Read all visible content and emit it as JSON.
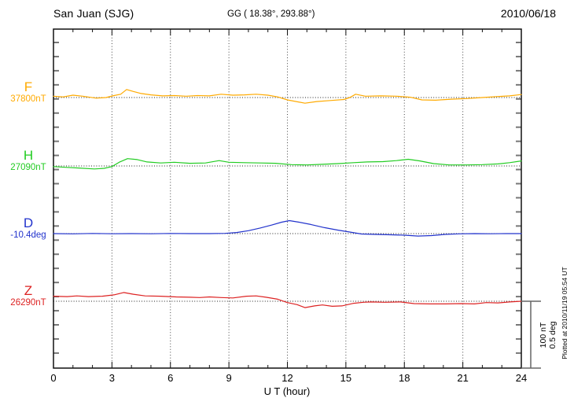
{
  "header": {
    "station": "San Juan (SJG)",
    "coordinates": "GG ( 18.38°, 293.88°)",
    "date": "2010/06/18"
  },
  "chart_data": {
    "type": "line",
    "title": "San Juan (SJG) magnetogram 2010/06/18",
    "xlabel": "U T (hour)",
    "x_range": [
      0,
      24
    ],
    "x_ticks": [
      0,
      3,
      6,
      9,
      12,
      15,
      18,
      21,
      24
    ],
    "x_minor_tick_step_hours": 1,
    "grid": "dotted vertical lines every 3 hours; dotted horizontal baseline per channel",
    "series": [
      {
        "id": "F",
        "label": "F",
        "base_label": "37800nT",
        "unit": "nT",
        "base_value": 37800,
        "color": "#FFAA00",
        "points": [
          [
            0,
            37802
          ],
          [
            0.5,
            37801
          ],
          [
            1,
            37803.5
          ],
          [
            1.5,
            37802
          ],
          [
            2.2,
            37799
          ],
          [
            2.7,
            37800
          ],
          [
            3.1,
            37803
          ],
          [
            3.45,
            37805
          ],
          [
            3.75,
            37812
          ],
          [
            4.1,
            37809
          ],
          [
            4.5,
            37806
          ],
          [
            5,
            37804
          ],
          [
            5.6,
            37802.5
          ],
          [
            6.2,
            37803
          ],
          [
            6.8,
            37802
          ],
          [
            7.4,
            37803
          ],
          [
            8,
            37802.5
          ],
          [
            8.6,
            37805
          ],
          [
            9.2,
            37803.5
          ],
          [
            9.8,
            37804
          ],
          [
            10.4,
            37805
          ],
          [
            11,
            37803.5
          ],
          [
            11.5,
            37801
          ],
          [
            12,
            37796.5
          ],
          [
            12.9,
            37791.5
          ],
          [
            13.5,
            37794
          ],
          [
            14.2,
            37795.5
          ],
          [
            14.9,
            37797
          ],
          [
            15.2,
            37800
          ],
          [
            15.5,
            37805
          ],
          [
            16,
            37802
          ],
          [
            16.8,
            37802.5
          ],
          [
            17.6,
            37802
          ],
          [
            18.3,
            37800.5
          ],
          [
            18.9,
            37796.5
          ],
          [
            19.6,
            37796
          ],
          [
            20.4,
            37797.5
          ],
          [
            21.2,
            37798.5
          ],
          [
            22,
            37800
          ],
          [
            22.8,
            37801.5
          ],
          [
            23.4,
            37802.5
          ],
          [
            24,
            37804.5
          ]
        ]
      },
      {
        "id": "H",
        "label": "H",
        "base_label": "27090nT",
        "unit": "nT",
        "base_value": 27090,
        "color": "#22CC22",
        "points": [
          [
            0,
            27089
          ],
          [
            0.6,
            27088
          ],
          [
            1.3,
            27087
          ],
          [
            2.1,
            27085.5
          ],
          [
            2.6,
            27086.5
          ],
          [
            3,
            27089
          ],
          [
            3.4,
            27096
          ],
          [
            3.8,
            27101
          ],
          [
            4.3,
            27099.5
          ],
          [
            4.8,
            27096
          ],
          [
            5.5,
            27094.5
          ],
          [
            6.2,
            27095.5
          ],
          [
            7,
            27094
          ],
          [
            7.8,
            27094.5
          ],
          [
            8.5,
            27098
          ],
          [
            9,
            27095.5
          ],
          [
            9.8,
            27095
          ],
          [
            10.6,
            27094.5
          ],
          [
            11.4,
            27094
          ],
          [
            12.2,
            27092
          ],
          [
            13,
            27091.5
          ],
          [
            13.8,
            27092.5
          ],
          [
            14.6,
            27093.5
          ],
          [
            15.4,
            27095
          ],
          [
            16.1,
            27096
          ],
          [
            16.9,
            27096.5
          ],
          [
            17.6,
            27098
          ],
          [
            18.2,
            27100
          ],
          [
            18.8,
            27097.5
          ],
          [
            19.5,
            27093.5
          ],
          [
            20.3,
            27091.5
          ],
          [
            21.2,
            27091.5
          ],
          [
            22,
            27092
          ],
          [
            22.8,
            27093
          ],
          [
            23.4,
            27095
          ],
          [
            24,
            27097.5
          ]
        ]
      },
      {
        "id": "D",
        "label": "D",
        "base_label": "-10.4deg",
        "unit": "deg",
        "base_value": -10.4,
        "color": "#2233CC",
        "points": [
          [
            0,
            -10.4
          ],
          [
            1,
            -10.402
          ],
          [
            2,
            -10.399
          ],
          [
            3,
            -10.401
          ],
          [
            4,
            -10.4
          ],
          [
            5,
            -10.401
          ],
          [
            6,
            -10.399
          ],
          [
            7,
            -10.4
          ],
          [
            8,
            -10.4
          ],
          [
            8.8,
            -10.398
          ],
          [
            9.4,
            -10.392
          ],
          [
            10,
            -10.378
          ],
          [
            10.6,
            -10.358
          ],
          [
            11.2,
            -10.336
          ],
          [
            11.7,
            -10.315
          ],
          [
            12.1,
            -10.303
          ],
          [
            12.6,
            -10.315
          ],
          [
            13.2,
            -10.332
          ],
          [
            13.9,
            -10.355
          ],
          [
            14.6,
            -10.374
          ],
          [
            15.2,
            -10.388
          ],
          [
            15.8,
            -10.403
          ],
          [
            16.5,
            -10.406
          ],
          [
            17.3,
            -10.409
          ],
          [
            18,
            -10.412
          ],
          [
            18.7,
            -10.418
          ],
          [
            19.4,
            -10.415
          ],
          [
            20.1,
            -10.406
          ],
          [
            20.8,
            -10.402
          ],
          [
            21.6,
            -10.4
          ],
          [
            22.4,
            -10.401
          ],
          [
            23.2,
            -10.4
          ],
          [
            24,
            -10.4
          ]
        ]
      },
      {
        "id": "Z",
        "label": "Z",
        "base_label": "26290nT",
        "unit": "nT",
        "base_value": 26290,
        "color": "#DD2222",
        "points": [
          [
            0,
            26297.5
          ],
          [
            0.7,
            26297
          ],
          [
            1.2,
            26298
          ],
          [
            1.8,
            26297
          ],
          [
            2.5,
            26297.5
          ],
          [
            3.1,
            26299.5
          ],
          [
            3.6,
            26303
          ],
          [
            4.1,
            26300.5
          ],
          [
            4.7,
            26298
          ],
          [
            5.5,
            26297.5
          ],
          [
            6.3,
            26296.5
          ],
          [
            7,
            26296
          ],
          [
            7.5,
            26295.5
          ],
          [
            8,
            26296.5
          ],
          [
            8.6,
            26295.5
          ],
          [
            9.2,
            26295
          ],
          [
            9.9,
            26297.5
          ],
          [
            10.4,
            26298
          ],
          [
            10.9,
            26296
          ],
          [
            11.5,
            26293
          ],
          [
            12,
            26288
          ],
          [
            12.5,
            26285
          ],
          [
            12.9,
            26280.5
          ],
          [
            13.4,
            26283
          ],
          [
            13.8,
            26284.5
          ],
          [
            14.3,
            26282.5
          ],
          [
            14.8,
            26283
          ],
          [
            15.4,
            26287
          ],
          [
            15.9,
            26288.5
          ],
          [
            16.3,
            26289
          ],
          [
            17,
            26288.5
          ],
          [
            17.8,
            26289
          ],
          [
            18.5,
            26286.5
          ],
          [
            19.3,
            26286
          ],
          [
            20.1,
            26286
          ],
          [
            20.9,
            26286.5
          ],
          [
            21.6,
            26286
          ],
          [
            22.2,
            26288
          ],
          [
            22.8,
            26287.5
          ],
          [
            23.4,
            26289
          ],
          [
            24,
            26290
          ]
        ]
      }
    ]
  },
  "scale_bar": {
    "label_nt": "100 nT",
    "label_deg": "0.5 deg",
    "nt_per_bar": 100,
    "deg_per_bar": 0.5
  },
  "footer": {
    "plotted_at": "Plotted at 2010/11/19 05:54 UT"
  }
}
